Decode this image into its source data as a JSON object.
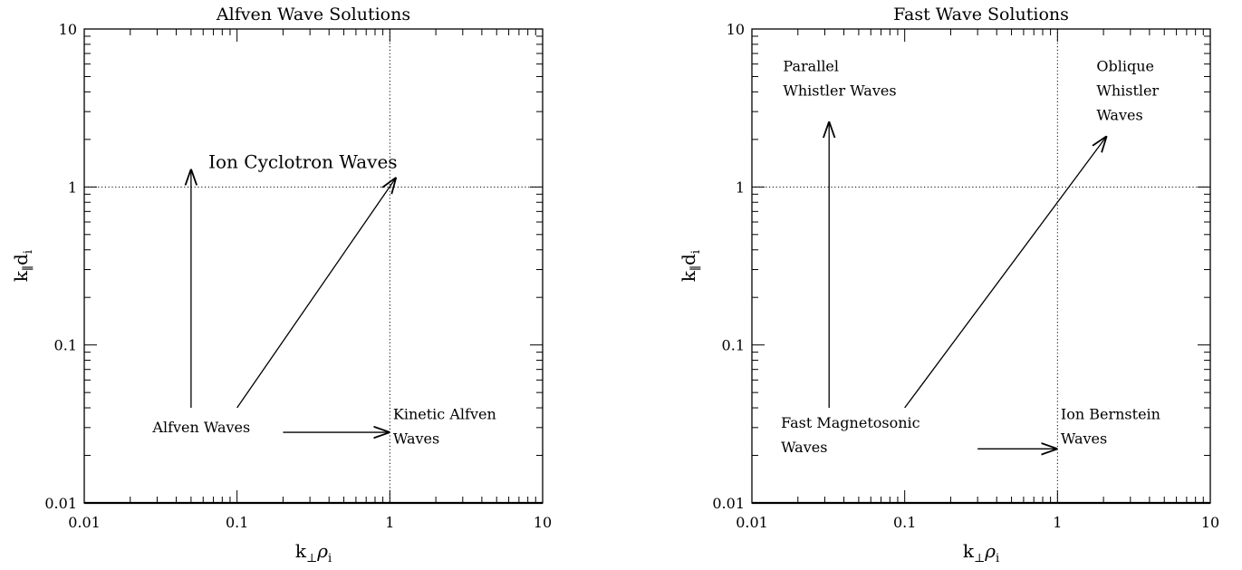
{
  "chart_data": [
    {
      "type": "scatter",
      "title": "Alfven Wave Solutions",
      "xlabel": {
        "main": "k",
        "sub1": "⊥",
        "mid": "ρ",
        "sub2": "i"
      },
      "ylabel": {
        "main": "k",
        "sub1": "∥",
        "mid": "d",
        "sub2": "i"
      },
      "x_scale": "log",
      "y_scale": "log",
      "xlim": [
        0.01,
        10
      ],
      "ylim": [
        0.01,
        10
      ],
      "xticks": [
        {
          "v": 0.01,
          "label": "0.01"
        },
        {
          "v": 0.1,
          "label": "0.1"
        },
        {
          "v": 1,
          "label": "1"
        },
        {
          "v": 10,
          "label": "10"
        }
      ],
      "yticks": [
        {
          "v": 0.01,
          "label": "0.01"
        },
        {
          "v": 0.1,
          "label": "0.1"
        },
        {
          "v": 1,
          "label": "1"
        },
        {
          "v": 10,
          "label": "10"
        }
      ],
      "ref_lines": [
        {
          "axis": "x",
          "value": 1
        },
        {
          "axis": "y",
          "value": 1
        }
      ],
      "arrows": [
        {
          "from": [
            0.05,
            0.04
          ],
          "to": [
            0.05,
            1.3
          ]
        },
        {
          "from": [
            0.1,
            0.04
          ],
          "to": [
            1.1,
            1.15
          ]
        },
        {
          "from": [
            0.2,
            0.028
          ],
          "to": [
            1.0,
            0.028
          ]
        }
      ],
      "annotations": [
        {
          "lines": [
            "Ion Cyclotron Waves"
          ],
          "x": 0.065,
          "y": 1.32,
          "size": "big"
        },
        {
          "lines": [
            "Alfven Waves"
          ],
          "x": 0.028,
          "y": 0.028
        },
        {
          "lines": [
            "Kinetic Alfven",
            "Waves"
          ],
          "x": 1.05,
          "y": 0.034
        }
      ]
    },
    {
      "type": "scatter",
      "title": "Fast Wave Solutions",
      "xlabel": {
        "main": "k",
        "sub1": "⊥",
        "mid": "ρ",
        "sub2": "i"
      },
      "ylabel": {
        "main": "k",
        "sub1": "∥",
        "mid": "d",
        "sub2": "i"
      },
      "x_scale": "log",
      "y_scale": "log",
      "xlim": [
        0.01,
        10
      ],
      "ylim": [
        0.01,
        10
      ],
      "xticks": [
        {
          "v": 0.01,
          "label": "0.01"
        },
        {
          "v": 0.1,
          "label": "0.1"
        },
        {
          "v": 1,
          "label": "1"
        },
        {
          "v": 10,
          "label": "10"
        }
      ],
      "yticks": [
        {
          "v": 0.01,
          "label": "0.01"
        },
        {
          "v": 0.1,
          "label": "0.1"
        },
        {
          "v": 1,
          "label": "1"
        },
        {
          "v": 10,
          "label": "10"
        }
      ],
      "ref_lines": [
        {
          "axis": "x",
          "value": 1
        },
        {
          "axis": "y",
          "value": 1
        }
      ],
      "arrows": [
        {
          "from": [
            0.032,
            0.04
          ],
          "to": [
            0.032,
            2.6
          ]
        },
        {
          "from": [
            0.1,
            0.04
          ],
          "to": [
            2.1,
            2.1
          ]
        },
        {
          "from": [
            0.3,
            0.022
          ],
          "to": [
            1.0,
            0.022
          ]
        }
      ],
      "annotations": [
        {
          "lines": [
            "Parallel",
            "Whistler Waves"
          ],
          "x": 0.016,
          "y": 5.4
        },
        {
          "lines": [
            "Oblique",
            "Whistler",
            "Waves"
          ],
          "x": 1.8,
          "y": 5.4
        },
        {
          "lines": [
            "Fast Magnetosonic",
            " Waves"
          ],
          "x": 0.0155,
          "y": 0.03
        },
        {
          "lines": [
            "Ion Bernstein",
            "Waves"
          ],
          "x": 1.05,
          "y": 0.034
        }
      ]
    }
  ]
}
